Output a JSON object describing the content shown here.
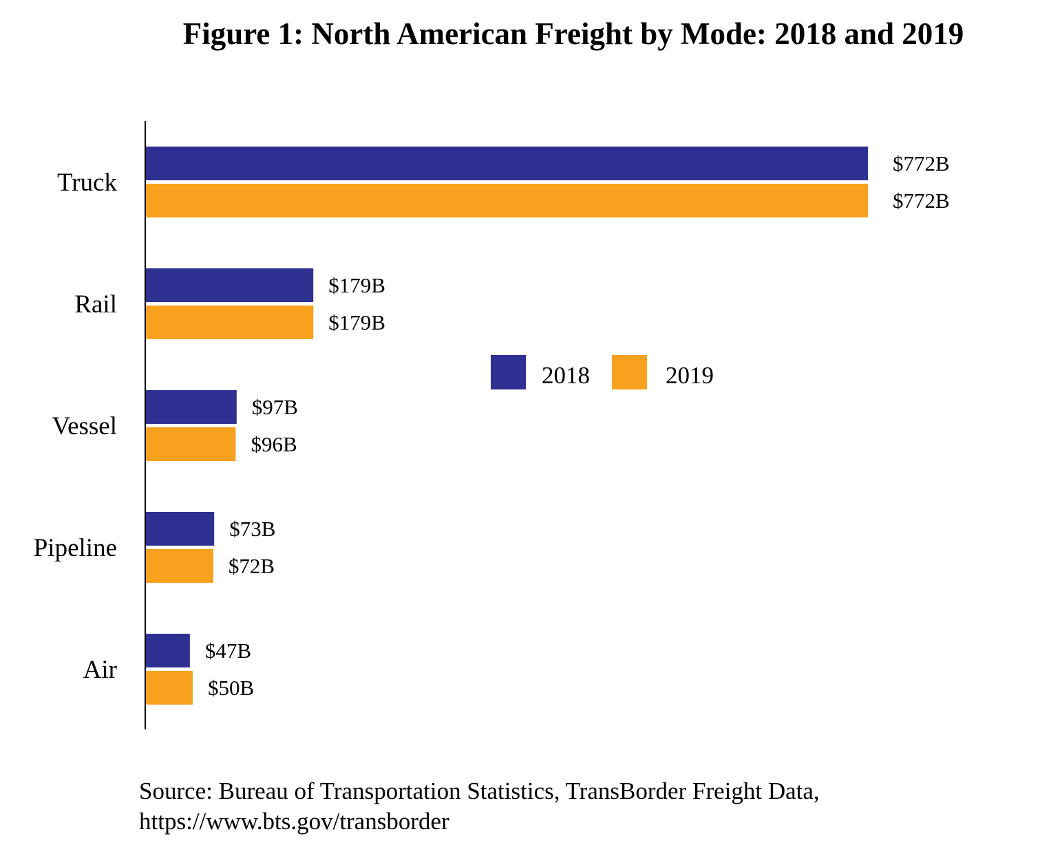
{
  "chart_data": {
    "type": "bar",
    "orientation": "horizontal",
    "title": "Figure 1: North American Freight by Mode: 2018 and 2019",
    "categories": [
      "Truck",
      "Rail",
      "Vessel",
      "Pipeline",
      "Air"
    ],
    "series": [
      {
        "name": "2018",
        "color": "#2E3192",
        "values": [
          772,
          179,
          97,
          73,
          47
        ],
        "labels": [
          "$772B",
          "$179B",
          "$97B",
          "$73B",
          "$47B"
        ]
      },
      {
        "name": "2019",
        "color": "#F7A11E",
        "values": [
          772,
          179,
          96,
          72,
          50
        ],
        "labels": [
          "$772B",
          "$179B",
          "$96B",
          "$72B",
          "$50B"
        ]
      }
    ],
    "xlim": [
      0,
      772
    ],
    "unit": "billion USD",
    "grid": false,
    "legend_position": "center-right",
    "source": "Source: Bureau of Transportation Statistics, TransBorder Freight Data,",
    "source_url": "https://www.bts.gov/transborder"
  }
}
